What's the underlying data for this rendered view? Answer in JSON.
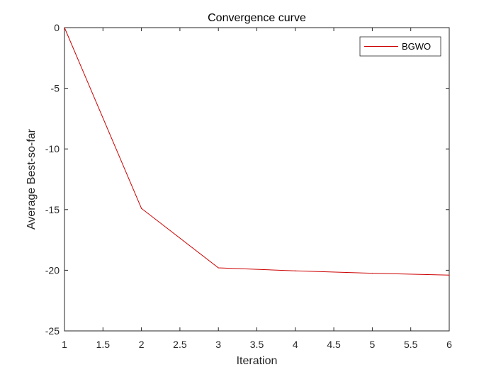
{
  "chart_data": {
    "type": "line",
    "title": "Convergence curve",
    "xlabel": "Iteration",
    "ylabel": "Average Best-so-far",
    "xlim": [
      1,
      6
    ],
    "ylim": [
      -25,
      0
    ],
    "xticks": [
      1,
      1.5,
      2,
      2.5,
      3,
      3.5,
      4,
      4.5,
      5,
      5.5,
      6
    ],
    "xtick_labels": [
      "1",
      "1.5",
      "2",
      "2.5",
      "3",
      "3.5",
      "4",
      "4.5",
      "5",
      "5.5",
      "6"
    ],
    "yticks": [
      0,
      -5,
      -10,
      -15,
      -20,
      -25
    ],
    "ytick_labels": [
      "0",
      "-5",
      "-10",
      "-15",
      "-20",
      "-25"
    ],
    "grid": false,
    "legend_position": "top-right",
    "series": [
      {
        "name": "BGWO",
        "color": "#cc0000",
        "x": [
          1,
          2,
          3,
          4,
          5,
          6
        ],
        "y": [
          0,
          -14.9,
          -19.8,
          -20.05,
          -20.25,
          -20.4
        ]
      }
    ]
  }
}
